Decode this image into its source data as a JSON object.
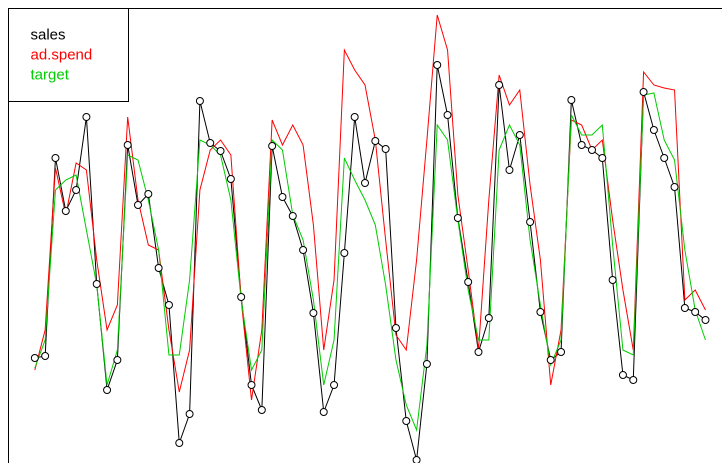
{
  "chart_data": {
    "type": "line",
    "x": [
      1,
      2,
      3,
      4,
      5,
      6,
      7,
      8,
      9,
      10,
      11,
      12,
      13,
      14,
      15,
      16,
      17,
      18,
      19,
      20,
      21,
      22,
      23,
      24,
      25,
      26,
      27,
      28,
      29,
      30,
      31,
      32,
      33,
      34,
      35,
      36,
      37,
      38,
      39,
      40,
      41,
      42,
      43,
      44,
      45,
      46,
      47,
      48,
      49,
      50,
      51,
      52,
      53,
      54,
      55,
      56,
      57,
      58,
      59,
      60,
      61,
      62,
      63,
      64,
      65,
      66
    ],
    "xlim": [
      -1.6,
      67.6
    ],
    "ylim": [
      0,
      463
    ],
    "legend": "topleft",
    "series": [
      {
        "name": "sales",
        "color": "#000000",
        "markers": true,
        "values": [
          105,
          107,
          305,
          252,
          273,
          346,
          179,
          73,
          103,
          318,
          258,
          269,
          195,
          158,
          20,
          49,
          362,
          320,
          312,
          284,
          166,
          78,
          53,
          317,
          266,
          247,
          213,
          150,
          51,
          78,
          210,
          346,
          280,
          322,
          314,
          135,
          42,
          3,
          99,
          398,
          348,
          245,
          181,
          111,
          145,
          378,
          293,
          328,
          241,
          151,
          103,
          111,
          363,
          318,
          313,
          305,
          183,
          88,
          83,
          371,
          333,
          305,
          276,
          155,
          151,
          143
        ]
      },
      {
        "name": "ad.spend",
        "color": "#ff0000",
        "markers": false,
        "values": [
          93,
          133,
          295,
          248,
          300,
          293,
          203,
          133,
          158,
          346,
          263,
          218,
          213,
          133,
          71,
          113,
          273,
          313,
          323,
          308,
          163,
          63,
          133,
          343,
          318,
          338,
          318,
          238,
          113,
          183,
          413,
          393,
          378,
          323,
          223,
          128,
          113,
          203,
          323,
          448,
          413,
          268,
          193,
          113,
          263,
          388,
          358,
          373,
          278,
          203,
          78,
          133,
          343,
          338,
          313,
          323,
          243,
          173,
          113,
          391,
          378,
          375,
          373,
          163,
          173,
          153
        ]
      },
      {
        "name": "target",
        "color": "#00cc00",
        "markers": false,
        "values": [
          95,
          123,
          273,
          283,
          288,
          233,
          178,
          78,
          113,
          308,
          303,
          263,
          213,
          108,
          108,
          183,
          323,
          318,
          308,
          263,
          163,
          93,
          113,
          323,
          313,
          248,
          223,
          163,
          78,
          123,
          305,
          283,
          263,
          238,
          178,
          103,
          58,
          33,
          118,
          338,
          323,
          243,
          173,
          123,
          123,
          313,
          338,
          318,
          223,
          158,
          98,
          123,
          348,
          328,
          328,
          338,
          218,
          113,
          108,
          368,
          370,
          323,
          303,
          213,
          153,
          123
        ]
      }
    ]
  }
}
